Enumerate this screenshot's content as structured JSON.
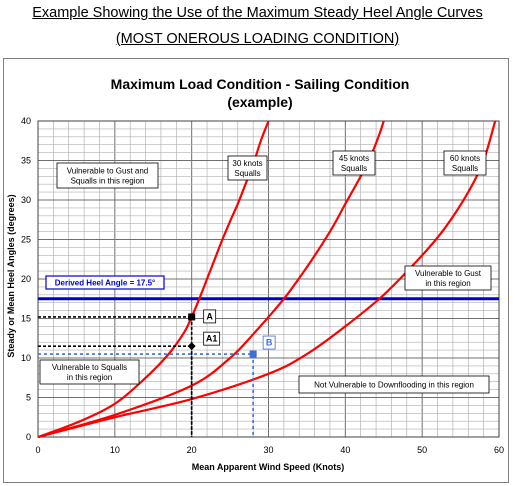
{
  "page": {
    "heading_line1": "Example Showing the Use of the Maximum Steady Heel Angle Curves",
    "heading_line2": "(MOST ONEROUS LOADING CONDITION)"
  },
  "chart_data": {
    "type": "line",
    "title": "Maximum Load Condition - Sailing Condition",
    "subtitle": "(example)",
    "xlabel": "Mean Apparent Wind Speed (Knots)",
    "ylabel": "Steady or Mean Heel Angles (degrees)",
    "xlim": [
      0,
      60
    ],
    "ylim": [
      0,
      40
    ],
    "x_ticks": [
      0,
      10,
      20,
      30,
      40,
      50,
      60
    ],
    "y_ticks": [
      0,
      5,
      10,
      15,
      20,
      25,
      30,
      35,
      40
    ],
    "grid": true,
    "grid_minor_x": 2,
    "grid_minor_y": 1,
    "series": [
      {
        "name": "30 knots Squalls",
        "label_lines": [
          "30 knots",
          "Squalls"
        ],
        "color": "#ff0000",
        "x": [
          0,
          5,
          10,
          14,
          17,
          19,
          20,
          21,
          22,
          23,
          24,
          25,
          26,
          27,
          28,
          29,
          30
        ],
        "y": [
          0,
          1.8,
          4.2,
          7.5,
          10.5,
          13.2,
          15.2,
          17.5,
          20.0,
          22.5,
          25.0,
          27.3,
          29.5,
          32.0,
          34.5,
          37.5,
          40.0
        ]
      },
      {
        "name": "45 knots Squalls",
        "label_lines": [
          "45 knots",
          "Squalls"
        ],
        "color": "#ff0000",
        "x": [
          0,
          10,
          20,
          25,
          28,
          32,
          35,
          38,
          40,
          42,
          43.5,
          44.5,
          45
        ],
        "y": [
          0,
          2.8,
          6.5,
          10.0,
          13.0,
          17.5,
          21.5,
          26.0,
          29.5,
          33.0,
          36.0,
          38.5,
          40.0
        ]
      },
      {
        "name": "60 knots Squalls",
        "label_lines": [
          "60 knots",
          "Squalls"
        ],
        "color": "#ff0000",
        "x": [
          0,
          10,
          20,
          30,
          35,
          40,
          45,
          50,
          53,
          56,
          58,
          59.5
        ],
        "y": [
          0,
          2.5,
          4.8,
          8.0,
          10.5,
          14.0,
          18.0,
          23.0,
          26.5,
          31.0,
          35.0,
          40.0
        ]
      }
    ],
    "derived_heel_angle": {
      "label": "Derived Heel Angle = 17.5°",
      "value": 17.5,
      "color": "#0000cc"
    },
    "points": [
      {
        "name": "A",
        "x": 20,
        "y": 15.2,
        "color": "#000000"
      },
      {
        "name": "A1",
        "x": 20,
        "y": 11.5,
        "color": "#000000"
      },
      {
        "name": "B",
        "x": 28,
        "y": 10.5,
        "color": "#3a6fd8"
      }
    ],
    "region_labels": [
      {
        "key": "gust_squalls",
        "lines": [
          "Vulnerable to Gust and",
          "Squalls in this region"
        ]
      },
      {
        "key": "squalls",
        "lines": [
          "Vulnerable to Squalls",
          "in this region"
        ]
      },
      {
        "key": "gust",
        "lines": [
          "Vulnerable to Gust",
          "in this region"
        ]
      },
      {
        "key": "not_vulnerable",
        "lines": [
          "Not Vulnerable to Downflooding in this region"
        ]
      }
    ]
  }
}
